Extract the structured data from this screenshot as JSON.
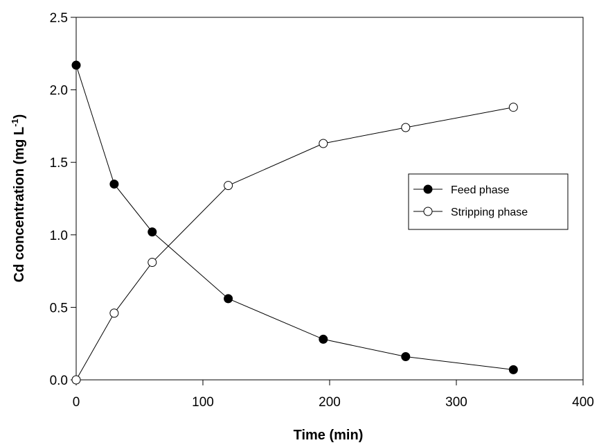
{
  "chart_data": {
    "type": "line",
    "xlabel": "Time (min)",
    "ylabel": "Cd concentration (mg L",
    "ylabel_sup": "-1",
    "ylabel_end": ")",
    "xlim": [
      0,
      400
    ],
    "ylim": [
      0,
      2.5
    ],
    "xticks": [
      0,
      100,
      200,
      300,
      400
    ],
    "yticks": [
      0.0,
      0.5,
      1.0,
      1.5,
      2.0,
      2.5
    ],
    "xtick_labels": [
      "0",
      "100",
      "200",
      "300",
      "400"
    ],
    "ytick_labels": [
      "0.0",
      "0.5",
      "1.0",
      "1.5",
      "2.0",
      "2.5"
    ],
    "grid": false,
    "legend_position": "right",
    "series": [
      {
        "name": "Feed phase",
        "marker": "filled-circle",
        "color": "#000000",
        "x": [
          0,
          30,
          60,
          120,
          195,
          260,
          345
        ],
        "y": [
          2.17,
          1.35,
          1.02,
          0.56,
          0.28,
          0.16,
          0.07
        ]
      },
      {
        "name": "Stripping phase",
        "marker": "open-circle",
        "color": "#000000",
        "x": [
          0,
          30,
          60,
          120,
          195,
          260,
          345
        ],
        "y": [
          0.0,
          0.46,
          0.81,
          1.34,
          1.63,
          1.74,
          1.88
        ]
      }
    ]
  }
}
